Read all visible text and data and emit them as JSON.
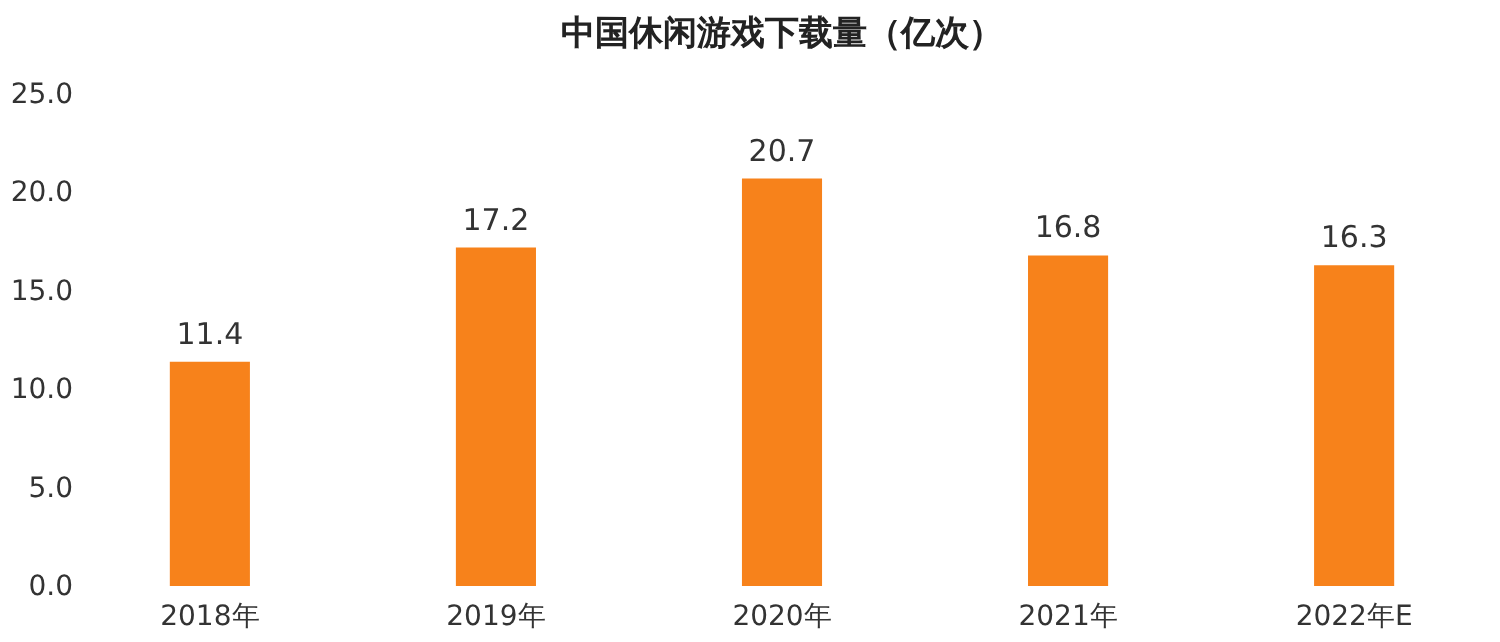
{
  "chart_data": {
    "type": "bar",
    "title": "中国休闲游戏下载量（亿次）",
    "categories": [
      "2018年",
      "2019年",
      "2020年",
      "2021年",
      "2022年E"
    ],
    "values": [
      11.4,
      17.2,
      20.7,
      16.8,
      16.3
    ],
    "color": "#f7821b",
    "ylim": [
      0,
      25
    ],
    "yticks": [
      {
        "value": 0,
        "label": "0.0"
      },
      {
        "value": 5,
        "label": "5.0"
      },
      {
        "value": 10,
        "label": "10.0"
      },
      {
        "value": 15,
        "label": "15.0"
      },
      {
        "value": 20,
        "label": "20.0"
      },
      {
        "value": 25,
        "label": "25.0"
      }
    ],
    "data_labels": true,
    "grid": false
  }
}
